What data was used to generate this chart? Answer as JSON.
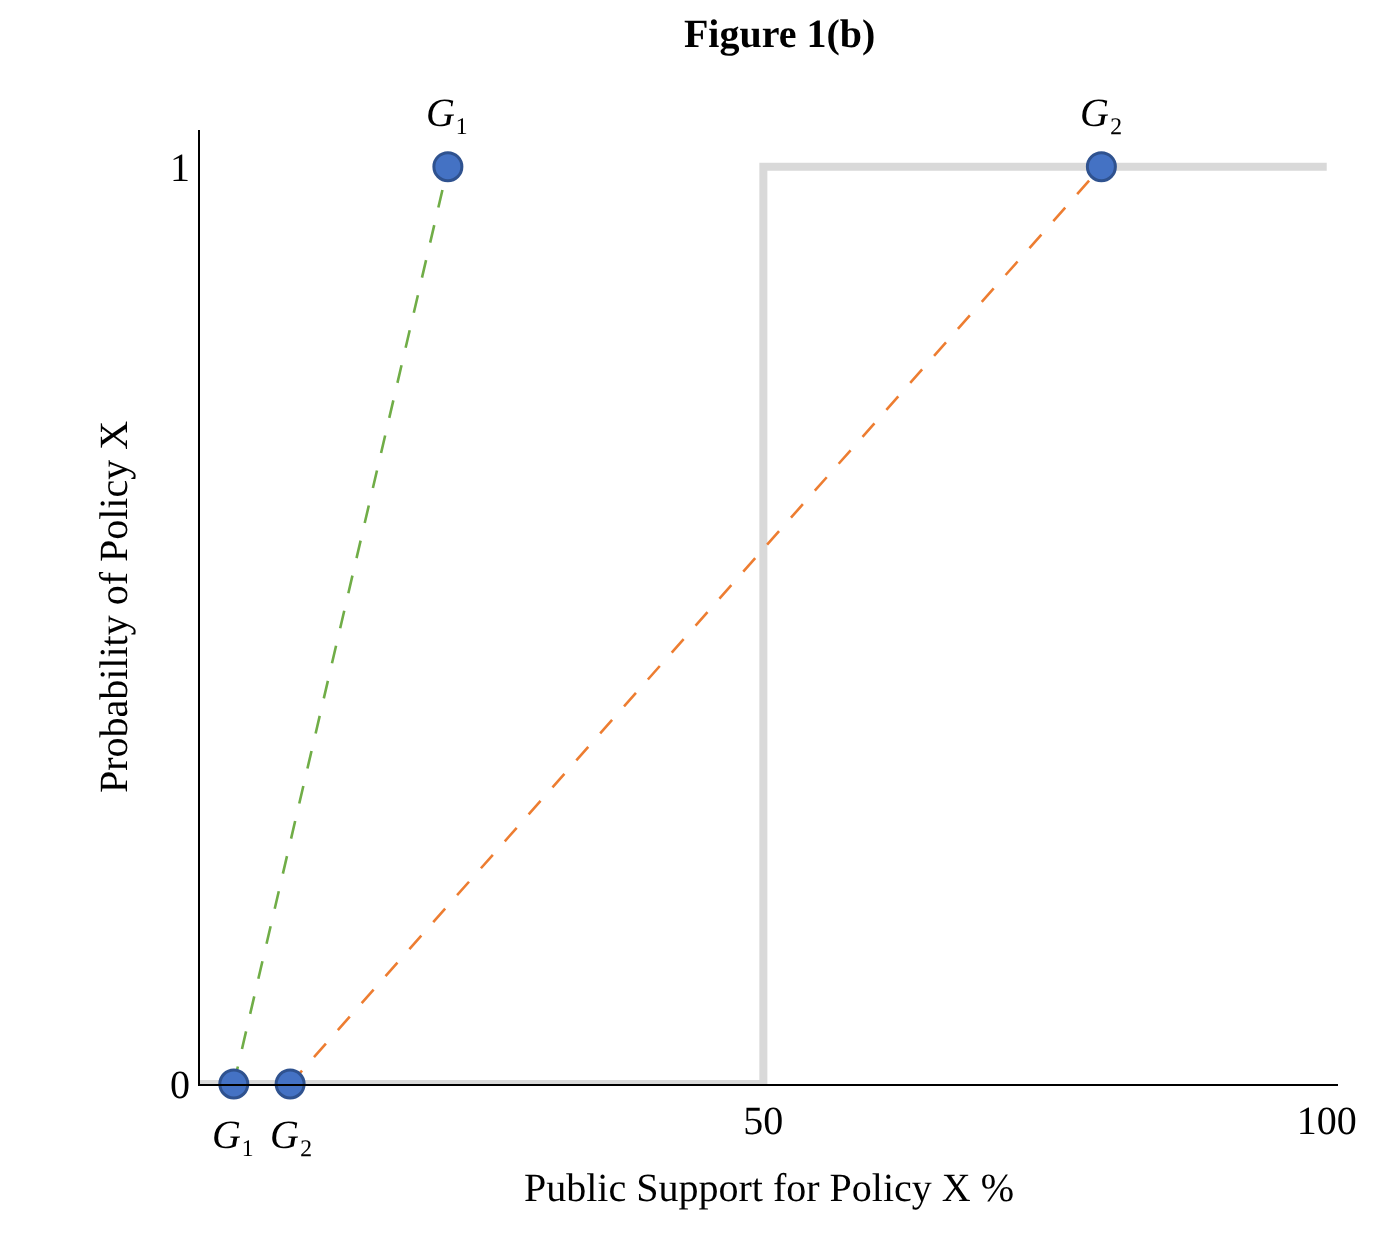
{
  "chart_data": {
    "type": "line",
    "title": "Figure 1(b)",
    "xlabel": "Public Support for Policy X %",
    "ylabel": "Probability of Policy X",
    "xlim": [
      0,
      101
    ],
    "xticks": [
      50,
      100
    ],
    "ylim": [
      0,
      1.04
    ],
    "yticks": [
      0,
      1
    ],
    "series": [
      {
        "type": "step",
        "color": "#d9d9d9",
        "x": [
          0,
          50,
          100
        ],
        "values": [
          0,
          1,
          1
        ],
        "line_style": "solid"
      },
      {
        "color": "#70ad47",
        "x": [
          3,
          22
        ],
        "values": [
          0,
          1
        ],
        "line_style": "dashed"
      },
      {
        "color": "#ed7d31",
        "x": [
          8,
          80
        ],
        "values": [
          0,
          1
        ],
        "line_style": "dashed"
      },
      {
        "type": "scatter",
        "color": "#4472c4",
        "x": [
          3,
          8,
          22,
          80
        ],
        "values": [
          0,
          0,
          1,
          1
        ],
        "marker": "circle"
      }
    ],
    "annotations": [
      {
        "text": "G₁",
        "x": 3,
        "y": 0
      },
      {
        "text": "G₂",
        "x": 8,
        "y": 0
      },
      {
        "text": "G₁",
        "x": 22,
        "y": 1
      },
      {
        "text": "G₂",
        "x": 80,
        "y": 1
      }
    ]
  }
}
